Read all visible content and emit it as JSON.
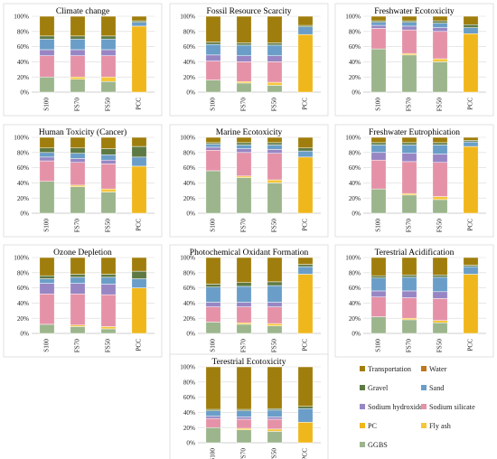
{
  "legend": {
    "items": [
      {
        "name": "Transportation",
        "color": "#a07e0d"
      },
      {
        "name": "Water",
        "color": "#c0761f"
      },
      {
        "name": "Gravel",
        "color": "#5e7a44"
      },
      {
        "name": "Sand",
        "color": "#6a9ec8"
      },
      {
        "name": "Sodium hydroxide",
        "color": "#9886c4"
      },
      {
        "name": "Sodium silicate",
        "color": "#e592a8"
      },
      {
        "name": "PC",
        "color": "#f0b71c"
      },
      {
        "name": "Fly ash",
        "color": "#f6c63a"
      },
      {
        "name": "GGBS",
        "color": "#9cb58c"
      }
    ]
  },
  "chart_data": [
    {
      "type": "bar",
      "stacked": true,
      "title": "Climate change",
      "categories": [
        "S100",
        "FS70",
        "FS50",
        "PCC"
      ],
      "y_ticks": [
        "0%",
        "20%",
        "40%",
        "60%",
        "80%",
        "100%"
      ],
      "ylim": [
        0,
        100
      ],
      "series": [
        {
          "name": "GGBS",
          "values": [
            20,
            17,
            14,
            0
          ]
        },
        {
          "name": "Fly ash",
          "values": [
            0,
            3,
            6,
            0
          ]
        },
        {
          "name": "PC",
          "values": [
            0,
            0,
            0,
            87
          ]
        },
        {
          "name": "Sodium silicate",
          "values": [
            28,
            28,
            28,
            0
          ]
        },
        {
          "name": "Sodium hydroxide",
          "values": [
            8,
            8,
            8,
            0
          ]
        },
        {
          "name": "Sand",
          "values": [
            14,
            14,
            14,
            5
          ]
        },
        {
          "name": "Gravel",
          "values": [
            4,
            4,
            4,
            2
          ]
        },
        {
          "name": "Water",
          "values": [
            0,
            0,
            0,
            0
          ]
        },
        {
          "name": "Transportation",
          "values": [
            26,
            26,
            26,
            6
          ]
        }
      ]
    },
    {
      "type": "bar",
      "stacked": true,
      "title": "Fossil Resource Scarcity",
      "categories": [
        "S100",
        "FS70",
        "FS50",
        "PCC"
      ],
      "y_ticks": [
        "0%",
        "20%",
        "40%",
        "60%",
        "80%",
        "100%"
      ],
      "ylim": [
        0,
        100
      ],
      "series": [
        {
          "name": "GGBS",
          "values": [
            16,
            12,
            9,
            0
          ]
        },
        {
          "name": "Fly ash",
          "values": [
            0,
            2,
            4,
            0
          ]
        },
        {
          "name": "PC",
          "values": [
            0,
            0,
            0,
            76
          ]
        },
        {
          "name": "Sodium silicate",
          "values": [
            25,
            26,
            27,
            0
          ]
        },
        {
          "name": "Sodium hydroxide",
          "values": [
            8,
            8,
            8,
            0
          ]
        },
        {
          "name": "Sand",
          "values": [
            14,
            14,
            14,
            10
          ]
        },
        {
          "name": "Gravel",
          "values": [
            3,
            3,
            3,
            2
          ]
        },
        {
          "name": "Water",
          "values": [
            0,
            0,
            0,
            0
          ]
        },
        {
          "name": "Transportation",
          "values": [
            34,
            35,
            35,
            12
          ]
        }
      ]
    },
    {
      "type": "bar",
      "stacked": true,
      "title": "Freshwater Ecotoxicity",
      "categories": [
        "S100",
        "FS70",
        "FS50",
        "PCC"
      ],
      "y_ticks": [
        "0%",
        "20%",
        "40%",
        "60%",
        "80%",
        "100%"
      ],
      "ylim": [
        0,
        100
      ],
      "series": [
        {
          "name": "GGBS",
          "values": [
            57,
            49,
            40,
            0
          ]
        },
        {
          "name": "Fly ash",
          "values": [
            0,
            2,
            4,
            0
          ]
        },
        {
          "name": "PC",
          "values": [
            0,
            0,
            0,
            77
          ]
        },
        {
          "name": "Sodium silicate",
          "values": [
            27,
            31,
            36,
            0
          ]
        },
        {
          "name": "Sodium hydroxide",
          "values": [
            4,
            5,
            5,
            0
          ]
        },
        {
          "name": "Sand",
          "values": [
            4,
            5,
            6,
            8
          ]
        },
        {
          "name": "Gravel",
          "values": [
            2,
            2,
            3,
            4
          ]
        },
        {
          "name": "Water",
          "values": [
            0,
            0,
            0,
            0
          ]
        },
        {
          "name": "Transportation",
          "values": [
            6,
            6,
            6,
            11
          ]
        }
      ]
    },
    {
      "type": "bar",
      "stacked": true,
      "title": "Human Toxicity (Cancer)",
      "categories": [
        "S100",
        "FS70",
        "FS50",
        "PCC"
      ],
      "y_ticks": [
        "0%",
        "20%",
        "40%",
        "60%",
        "80%",
        "100%"
      ],
      "ylim": [
        0,
        100
      ],
      "series": [
        {
          "name": "GGBS",
          "values": [
            42,
            35,
            28,
            0
          ]
        },
        {
          "name": "Fly ash",
          "values": [
            0,
            2,
            4,
            0
          ]
        },
        {
          "name": "PC",
          "values": [
            0,
            0,
            0,
            62
          ]
        },
        {
          "name": "Sodium silicate",
          "values": [
            27,
            30,
            33,
            0
          ]
        },
        {
          "name": "Sodium hydroxide",
          "values": [
            5,
            5,
            5,
            0
          ]
        },
        {
          "name": "Sand",
          "values": [
            6,
            7,
            7,
            12
          ]
        },
        {
          "name": "Gravel",
          "values": [
            6,
            7,
            8,
            14
          ]
        },
        {
          "name": "Water",
          "values": [
            0,
            0,
            0,
            0
          ]
        },
        {
          "name": "Transportation",
          "values": [
            14,
            14,
            15,
            12
          ]
        }
      ]
    },
    {
      "type": "bar",
      "stacked": true,
      "title": "Marine Ecotoxicity",
      "categories": [
        "S100",
        "FS70",
        "FS50",
        "PCC"
      ],
      "y_ticks": [
        "0%",
        "20%",
        "40%",
        "60%",
        "80%",
        "100%"
      ],
      "ylim": [
        0,
        100
      ],
      "series": [
        {
          "name": "GGBS",
          "values": [
            56,
            47,
            40,
            0
          ]
        },
        {
          "name": "Fly ash",
          "values": [
            0,
            2,
            4,
            0
          ]
        },
        {
          "name": "PC",
          "values": [
            0,
            0,
            0,
            74
          ]
        },
        {
          "name": "Sodium silicate",
          "values": [
            27,
            31,
            35,
            0
          ]
        },
        {
          "name": "Sodium hydroxide",
          "values": [
            4,
            5,
            5,
            0
          ]
        },
        {
          "name": "Sand",
          "values": [
            4,
            5,
            6,
            8
          ]
        },
        {
          "name": "Gravel",
          "values": [
            2,
            3,
            3,
            4
          ]
        },
        {
          "name": "Water",
          "values": [
            0,
            0,
            0,
            0
          ]
        },
        {
          "name": "Transportation",
          "values": [
            7,
            7,
            7,
            14
          ]
        }
      ]
    },
    {
      "type": "bar",
      "stacked": true,
      "title": "Freshwater Eutrophication",
      "categories": [
        "S100",
        "FS70",
        "FS50",
        "PCC"
      ],
      "y_ticks": [
        "0%",
        "20%",
        "40%",
        "60%",
        "80%",
        "100%"
      ],
      "ylim": [
        0,
        100
      ],
      "series": [
        {
          "name": "GGBS",
          "values": [
            32,
            24,
            18,
            0
          ]
        },
        {
          "name": "Fly ash",
          "values": [
            0,
            2,
            4,
            0
          ]
        },
        {
          "name": "PC",
          "values": [
            0,
            0,
            0,
            88
          ]
        },
        {
          "name": "Sodium silicate",
          "values": [
            38,
            42,
            45,
            0
          ]
        },
        {
          "name": "Sodium hydroxide",
          "values": [
            10,
            11,
            11,
            0
          ]
        },
        {
          "name": "Sand",
          "values": [
            10,
            11,
            12,
            6
          ]
        },
        {
          "name": "Gravel",
          "values": [
            3,
            3,
            3,
            2
          ]
        },
        {
          "name": "Water",
          "values": [
            0,
            0,
            0,
            0
          ]
        },
        {
          "name": "Transportation",
          "values": [
            7,
            7,
            7,
            4
          ]
        }
      ]
    },
    {
      "type": "bar",
      "stacked": true,
      "title": "Ozone Depletion",
      "categories": [
        "S100",
        "FS70",
        "FS50",
        "PCC"
      ],
      "y_ticks": [
        "0%",
        "20%",
        "40%",
        "60%",
        "80%",
        "100%"
      ],
      "ylim": [
        0,
        100
      ],
      "series": [
        {
          "name": "GGBS",
          "values": [
            12,
            9,
            6,
            0
          ]
        },
        {
          "name": "Fly ash",
          "values": [
            0,
            2,
            3,
            0
          ]
        },
        {
          "name": "PC",
          "values": [
            0,
            0,
            0,
            60
          ]
        },
        {
          "name": "Sodium silicate",
          "values": [
            40,
            41,
            42,
            0
          ]
        },
        {
          "name": "Sodium hydroxide",
          "values": [
            14,
            14,
            14,
            0
          ]
        },
        {
          "name": "Sand",
          "values": [
            6,
            8,
            9,
            12
          ]
        },
        {
          "name": "Gravel",
          "values": [
            4,
            4,
            4,
            10
          ]
        },
        {
          "name": "Water",
          "values": [
            0,
            0,
            0,
            0
          ]
        },
        {
          "name": "Transportation",
          "values": [
            24,
            22,
            22,
            18
          ]
        }
      ]
    },
    {
      "type": "bar",
      "stacked": true,
      "title": "Photochemical Oxidant Formation",
      "categories": [
        "S100",
        "FS70",
        "FS50",
        "PCC"
      ],
      "y_ticks": [
        "0%",
        "20%",
        "40%",
        "60%",
        "80%",
        "100%"
      ],
      "ylim": [
        0,
        100
      ],
      "series": [
        {
          "name": "GGBS",
          "values": [
            15,
            12,
            10,
            0
          ]
        },
        {
          "name": "Fly ash",
          "values": [
            0,
            2,
            3,
            0
          ]
        },
        {
          "name": "PC",
          "values": [
            0,
            0,
            0,
            78
          ]
        },
        {
          "name": "Sodium silicate",
          "values": [
            20,
            21,
            22,
            0
          ]
        },
        {
          "name": "Sodium hydroxide",
          "values": [
            6,
            6,
            6,
            0
          ]
        },
        {
          "name": "Sand",
          "values": [
            20,
            21,
            22,
            10
          ]
        },
        {
          "name": "Gravel",
          "values": [
            4,
            5,
            5,
            3
          ]
        },
        {
          "name": "Water",
          "values": [
            0,
            0,
            0,
            0
          ]
        },
        {
          "name": "Transportation",
          "values": [
            35,
            33,
            32,
            9
          ]
        }
      ]
    },
    {
      "type": "bar",
      "stacked": true,
      "title": "Terestrial Acidification",
      "categories": [
        "S100",
        "FS70",
        "FS50",
        "PCC"
      ],
      "y_ticks": [
        "0%",
        "20%",
        "40%",
        "60%",
        "80%",
        "100%"
      ],
      "ylim": [
        0,
        100
      ],
      "series": [
        {
          "name": "GGBS",
          "values": [
            22,
            18,
            14,
            0
          ]
        },
        {
          "name": "Fly ash",
          "values": [
            0,
            2,
            3,
            0
          ]
        },
        {
          "name": "PC",
          "values": [
            0,
            0,
            0,
            78
          ]
        },
        {
          "name": "Sodium silicate",
          "values": [
            26,
            27,
            29,
            0
          ]
        },
        {
          "name": "Sodium hydroxide",
          "values": [
            8,
            9,
            9,
            0
          ]
        },
        {
          "name": "Sand",
          "values": [
            17,
            18,
            19,
            10
          ]
        },
        {
          "name": "Gravel",
          "values": [
            3,
            3,
            3,
            2
          ]
        },
        {
          "name": "Water",
          "values": [
            0,
            0,
            0,
            0
          ]
        },
        {
          "name": "Transportation",
          "values": [
            24,
            23,
            23,
            10
          ]
        }
      ]
    },
    {
      "type": "bar",
      "stacked": true,
      "title": "Terestrial Ecotoxicity",
      "categories": [
        "S100",
        "FS70",
        "FS50",
        "PCC"
      ],
      "y_ticks": [
        "0%",
        "20%",
        "40%",
        "60%",
        "80%",
        "100%"
      ],
      "ylim": [
        0,
        100
      ],
      "series": [
        {
          "name": "GGBS",
          "values": [
            20,
            17,
            15,
            0
          ]
        },
        {
          "name": "Fly ash",
          "values": [
            0,
            2,
            3,
            0
          ]
        },
        {
          "name": "PC",
          "values": [
            0,
            0,
            0,
            27
          ]
        },
        {
          "name": "Sodium silicate",
          "values": [
            12,
            12,
            13,
            0
          ]
        },
        {
          "name": "Sodium hydroxide",
          "values": [
            3,
            3,
            3,
            0
          ]
        },
        {
          "name": "Sand",
          "values": [
            7,
            8,
            9,
            18
          ]
        },
        {
          "name": "Gravel",
          "values": [
            2,
            2,
            2,
            3
          ]
        },
        {
          "name": "Water",
          "values": [
            0,
            0,
            0,
            0
          ]
        },
        {
          "name": "Transportation",
          "values": [
            56,
            56,
            55,
            52
          ]
        }
      ]
    }
  ]
}
